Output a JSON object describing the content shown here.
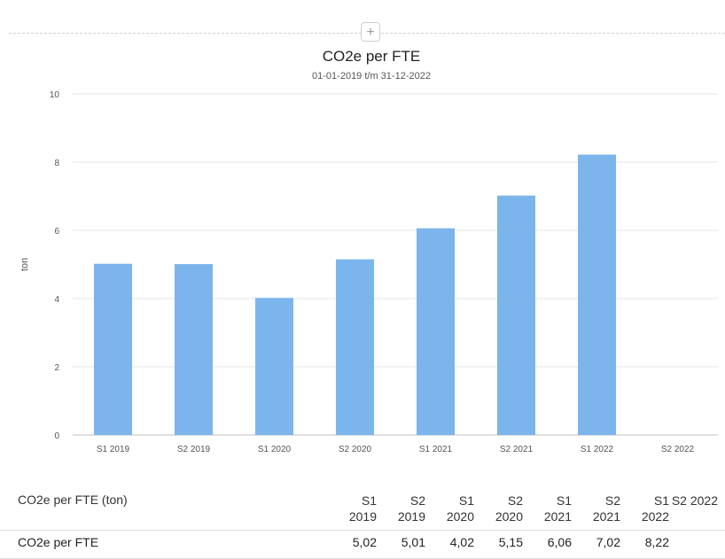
{
  "add_button_label": "+",
  "chart_data": {
    "type": "bar",
    "title": "CO2e per FTE",
    "subtitle": "01-01-2019 t/m 31-12-2022",
    "xlabel": "",
    "ylabel": "ton",
    "ylim": [
      0,
      10
    ],
    "yticks": [
      "0",
      "2",
      "4",
      "6",
      "8",
      "10"
    ],
    "categories": [
      "S1 2019",
      "S2 2019",
      "S1 2020",
      "S2 2020",
      "S1 2021",
      "S2 2021",
      "S1 2022",
      "S2 2022"
    ],
    "series": [
      {
        "values": [
          5.02,
          5.01,
          4.02,
          5.15,
          6.06,
          7.02,
          8.22,
          null
        ]
      }
    ],
    "color": "#7cb5ec",
    "grid": true,
    "legend": "none"
  },
  "table": {
    "header_label": "CO2e per FTE (ton)",
    "columns": [
      [
        "S1",
        "2019"
      ],
      [
        "S2",
        "2019"
      ],
      [
        "S1",
        "2020"
      ],
      [
        "S2",
        "2020"
      ],
      [
        "S1",
        "2021"
      ],
      [
        "S2",
        "2021"
      ],
      [
        "S1",
        "2022"
      ],
      [
        "S2 2022"
      ]
    ],
    "row_label": "CO2e per FTE",
    "row_values": [
      "5,02",
      "5,01",
      "4,02",
      "5,15",
      "6,06",
      "7,02",
      "8,22",
      ""
    ]
  }
}
